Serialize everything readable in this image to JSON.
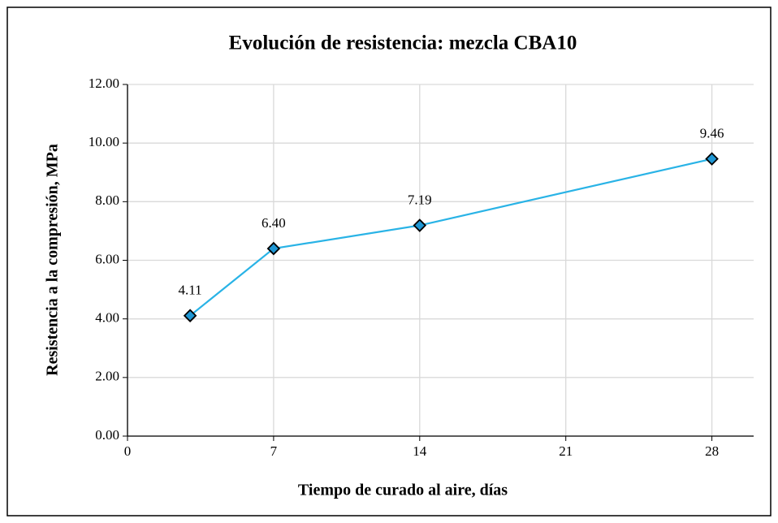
{
  "chart_data": {
    "type": "line",
    "title": "Evolución de resistencia: mezcla CBA10",
    "x_label": "Tiempo de curado al aire, días",
    "y_label": "Resistencia a la compresión, MPa",
    "x": [
      3,
      7,
      14,
      28
    ],
    "series": [
      {
        "color": "#29b3e6",
        "marker_color": "#1f97d4",
        "values": [
          4.11,
          6.4,
          7.19,
          9.46
        ],
        "value_labels": [
          "4.11",
          "6.40",
          "7.19",
          "9.46"
        ]
      }
    ],
    "xlim": [
      0,
      30
    ],
    "xticks": [
      0,
      7,
      14,
      21,
      28
    ],
    "ylim": [
      0,
      12
    ],
    "yticks": [
      {
        "value": 0,
        "label": "0.00"
      },
      {
        "value": 2,
        "label": "2.00"
      },
      {
        "value": 4,
        "label": "4.00"
      },
      {
        "value": 6,
        "label": "6.00"
      },
      {
        "value": 8,
        "label": "8.00"
      },
      {
        "value": 10,
        "label": "10.00"
      },
      {
        "value": 12,
        "label": "12.00"
      }
    ],
    "grid": true
  }
}
